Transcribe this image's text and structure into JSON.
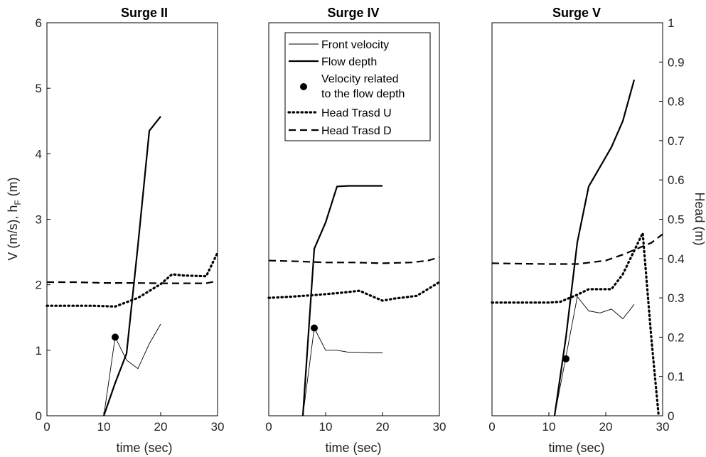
{
  "figure": {
    "left_ylabel_main": "V (m/s), h",
    "left_ylabel_sub": "F",
    "left_ylabel_tail": " (m)",
    "right_ylabel": "Head (m)"
  },
  "legend": {
    "items": [
      {
        "key": "front_velocity",
        "style": "thin",
        "lines": [
          "Front velocity"
        ]
      },
      {
        "key": "flow_depth",
        "style": "thick",
        "lines": [
          "Flow depth"
        ]
      },
      {
        "key": "velocity_points",
        "style": "marker",
        "lines": [
          "Velocity related",
          "to the flow depth"
        ]
      },
      {
        "key": "head_u",
        "style": "dotted",
        "lines": [
          "Head Trasd U"
        ]
      },
      {
        "key": "head_d",
        "style": "dashed",
        "lines": [
          "Head Trasd D"
        ]
      }
    ]
  },
  "chart_data": [
    {
      "type": "line",
      "title": "Surge II",
      "xlabel": "time (sec)",
      "xlim": [
        0,
        30
      ],
      "xticks": [
        0,
        10,
        20,
        30
      ],
      "ylim_left": [
        0,
        6
      ],
      "yticks_left": [
        0,
        1,
        2,
        3,
        4,
        5,
        6
      ],
      "ylim_right": [
        0,
        1
      ],
      "series": [
        {
          "key": "front_velocity",
          "axis": "left",
          "x": [
            10,
            12,
            14,
            16,
            18,
            20
          ],
          "y": [
            0,
            1.2,
            0.85,
            0.72,
            1.1,
            1.4
          ]
        },
        {
          "key": "flow_depth",
          "axis": "left",
          "x": [
            10,
            12,
            14,
            16,
            18,
            20
          ],
          "y": [
            0,
            0.5,
            0.95,
            2.6,
            4.35,
            4.57
          ]
        },
        {
          "key": "velocity_points",
          "axis": "left",
          "x": [
            12
          ],
          "y": [
            1.2
          ]
        },
        {
          "key": "head_u",
          "axis": "right",
          "x": [
            0,
            4,
            8,
            12,
            16,
            20,
            22,
            24,
            28,
            30
          ],
          "y": [
            0.28,
            0.28,
            0.28,
            0.278,
            0.3,
            0.335,
            0.36,
            0.357,
            0.355,
            0.415
          ]
        },
        {
          "key": "head_d",
          "axis": "right",
          "x": [
            0,
            5,
            10,
            15,
            20,
            25,
            28,
            30
          ],
          "y": [
            0.34,
            0.34,
            0.338,
            0.338,
            0.337,
            0.337,
            0.337,
            0.343
          ]
        }
      ]
    },
    {
      "type": "line",
      "title": "Surge IV",
      "xlabel": "time (sec)",
      "xlim": [
        0,
        30
      ],
      "xticks": [
        0,
        10,
        20,
        30
      ],
      "ylim_left": [
        0,
        6
      ],
      "yticks_left": [],
      "ylim_right": [
        0,
        1
      ],
      "series": [
        {
          "key": "front_velocity",
          "axis": "left",
          "x": [
            6,
            8,
            10,
            12,
            14,
            16,
            18,
            20
          ],
          "y": [
            0,
            1.34,
            1.0,
            1.0,
            0.97,
            0.97,
            0.96,
            0.96
          ]
        },
        {
          "key": "flow_depth",
          "axis": "left",
          "x": [
            6,
            8,
            10,
            12,
            14,
            16,
            18,
            20
          ],
          "y": [
            0,
            2.55,
            2.95,
            3.5,
            3.51,
            3.51,
            3.51,
            3.51
          ]
        },
        {
          "key": "velocity_points",
          "axis": "left",
          "x": [
            8
          ],
          "y": [
            1.34
          ]
        },
        {
          "key": "head_u",
          "axis": "right",
          "x": [
            0,
            4,
            8,
            12,
            16,
            18,
            20,
            22,
            26,
            30
          ],
          "y": [
            0.3,
            0.303,
            0.307,
            0.312,
            0.318,
            0.305,
            0.293,
            0.298,
            0.305,
            0.34
          ]
        },
        {
          "key": "head_d",
          "axis": "right",
          "x": [
            0,
            5,
            10,
            15,
            20,
            25,
            28,
            30
          ],
          "y": [
            0.395,
            0.393,
            0.39,
            0.39,
            0.388,
            0.39,
            0.395,
            0.403
          ]
        }
      ]
    },
    {
      "type": "line",
      "title": "Surge V",
      "xlabel": "time (sec)",
      "xlim": [
        0,
        30
      ],
      "xticks": [
        0,
        10,
        20,
        30
      ],
      "ylim_left": [
        0,
        6
      ],
      "yticks_left": [],
      "ylim_right": [
        0,
        1
      ],
      "yticks_right": [
        0,
        0.1,
        0.2,
        0.3,
        0.4,
        0.5,
        0.6,
        0.7,
        0.8,
        0.9,
        1
      ],
      "series": [
        {
          "key": "front_velocity",
          "axis": "left",
          "x": [
            11,
            13,
            15,
            17,
            19,
            21,
            23,
            25
          ],
          "y": [
            0,
            0.9,
            1.82,
            1.6,
            1.57,
            1.63,
            1.48,
            1.7
          ]
        },
        {
          "key": "flow_depth",
          "axis": "left",
          "x": [
            11,
            13,
            15,
            17,
            19,
            21,
            23,
            25
          ],
          "y": [
            0,
            1.2,
            2.65,
            3.5,
            3.8,
            4.1,
            4.5,
            5.13
          ]
        },
        {
          "key": "velocity_points",
          "axis": "left",
          "x": [
            13
          ],
          "y": [
            0.87
          ]
        },
        {
          "key": "head_u",
          "axis": "right",
          "x": [
            0,
            5,
            10,
            12,
            15,
            17,
            20,
            21,
            23,
            25,
            26.5,
            28,
            29.3
          ],
          "y": [
            0.288,
            0.288,
            0.288,
            0.29,
            0.308,
            0.322,
            0.322,
            0.322,
            0.36,
            0.42,
            0.465,
            0.2,
            0
          ]
        },
        {
          "key": "head_d",
          "axis": "right",
          "x": [
            0,
            5,
            10,
            15,
            20,
            23,
            26,
            28,
            30
          ],
          "y": [
            0.388,
            0.387,
            0.386,
            0.386,
            0.395,
            0.41,
            0.428,
            0.44,
            0.462
          ]
        }
      ]
    }
  ]
}
